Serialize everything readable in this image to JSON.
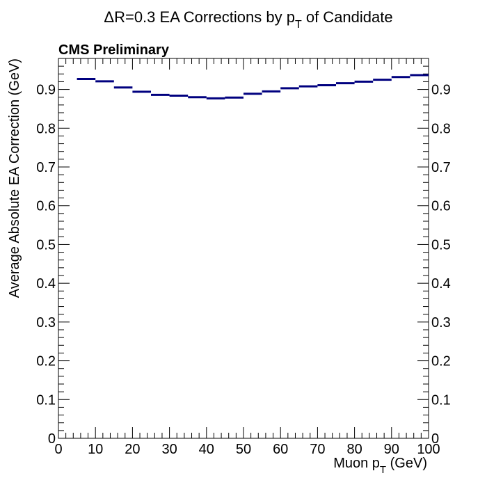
{
  "chart_data": {
    "type": "line",
    "title": "ΔR=0.3 EA Corrections by p",
    "title_sub": "T",
    "title_suffix": " of Candidate",
    "label": "CMS Preliminary",
    "xlabel": "Muon p",
    "xlabel_sub": "T",
    "xlabel_suffix": " (GeV)",
    "ylabel": "Average Absolute EA Correction (GeV)",
    "xlim": [
      0,
      100
    ],
    "ylim": [
      0,
      0.98
    ],
    "x_ticks": [
      0,
      10,
      20,
      30,
      40,
      50,
      60,
      70,
      80,
      90,
      100
    ],
    "y_ticks": [
      0,
      0.1,
      0.2,
      0.3,
      0.4,
      0.5,
      0.6,
      0.7,
      0.8,
      0.9
    ],
    "x_tick_labels": [
      "0",
      "10",
      "20",
      "30",
      "40",
      "50",
      "60",
      "70",
      "80",
      "90",
      "100"
    ],
    "y_tick_labels": [
      "0",
      "0.1",
      "0.2",
      "0.3",
      "0.4",
      "0.5",
      "0.6",
      "0.7",
      "0.8",
      "0.9"
    ],
    "line_color": "#00007f",
    "grid": false,
    "bins": [
      {
        "x0": 5,
        "x1": 10,
        "y": 0.927
      },
      {
        "x0": 10,
        "x1": 15,
        "y": 0.921
      },
      {
        "x0": 15,
        "x1": 20,
        "y": 0.905
      },
      {
        "x0": 20,
        "x1": 25,
        "y": 0.894
      },
      {
        "x0": 25,
        "x1": 30,
        "y": 0.886
      },
      {
        "x0": 30,
        "x1": 35,
        "y": 0.884
      },
      {
        "x0": 35,
        "x1": 40,
        "y": 0.88
      },
      {
        "x0": 40,
        "x1": 45,
        "y": 0.877
      },
      {
        "x0": 45,
        "x1": 50,
        "y": 0.879
      },
      {
        "x0": 50,
        "x1": 55,
        "y": 0.889
      },
      {
        "x0": 55,
        "x1": 60,
        "y": 0.895
      },
      {
        "x0": 60,
        "x1": 65,
        "y": 0.903
      },
      {
        "x0": 65,
        "x1": 70,
        "y": 0.908
      },
      {
        "x0": 70,
        "x1": 75,
        "y": 0.911
      },
      {
        "x0": 75,
        "x1": 80,
        "y": 0.916
      },
      {
        "x0": 80,
        "x1": 85,
        "y": 0.92
      },
      {
        "x0": 85,
        "x1": 90,
        "y": 0.925
      },
      {
        "x0": 90,
        "x1": 95,
        "y": 0.932
      },
      {
        "x0": 95,
        "x1": 100,
        "y": 0.937
      }
    ]
  }
}
